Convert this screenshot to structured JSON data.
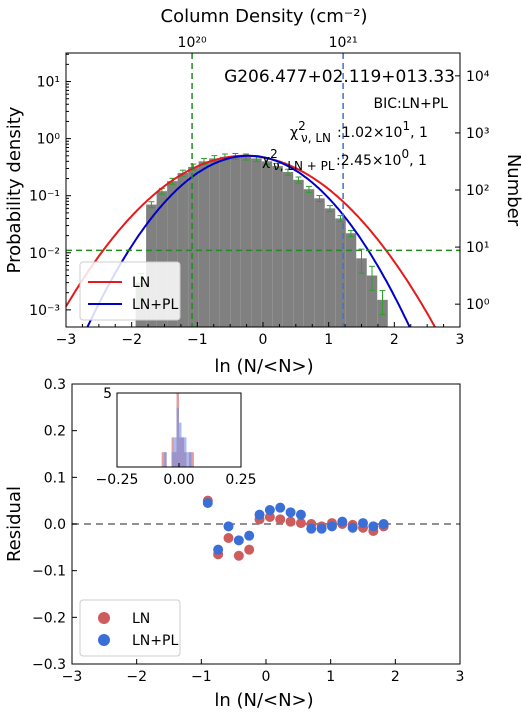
{
  "chart_data": [
    {
      "type": "histogram+line",
      "title": "G206.477+02.119+013.33",
      "top_axis": {
        "label": "Column Density (cm⁻²)",
        "ticks": [
          "10²⁰",
          "10²¹"
        ],
        "tick_lnx": [
          -1.08,
          1.22
        ]
      },
      "xlabel": "ln (N/<N>)",
      "ylabel": "Probability density",
      "ylabel_right": "Number",
      "xlim": [
        -3,
        3
      ],
      "ylim_log10": [
        -3.3,
        1.5
      ],
      "yticks_left": [
        "10⁻³",
        "10⁻²",
        "10⁻¹",
        "10⁰",
        "10¹"
      ],
      "yticks_right": [
        "10⁰",
        "10¹",
        "10²",
        "10³",
        "10⁴"
      ],
      "annotations": {
        "bic": "BIC:LN+PL",
        "chi_ln": "χ²ν,LN:1.02×10¹, 1",
        "chi_ln_label": "χ",
        "chi_ln_sup": "2",
        "chi_ln_sub": "ν, LN",
        "chi_ln_val": ":1.02×10",
        "chi_ln_exp": "1",
        "chi_ln_tail": ", 1",
        "chi_pl_label": "χ",
        "chi_pl_sup": "2",
        "chi_pl_sub": "ν, LN + PL",
        "chi_pl_val": ":2.45×10",
        "chi_pl_exp": "0",
        "chi_pl_tail": ", 1"
      },
      "histogram": {
        "bin_width": 0.16,
        "bin_left_edges": [
          -1.94,
          -1.78,
          -1.62,
          -1.46,
          -1.3,
          -1.14,
          -0.98,
          -0.82,
          -0.66,
          -0.5,
          -0.34,
          -0.18,
          -0.02,
          0.14,
          0.3,
          0.46,
          0.62,
          0.78,
          0.94,
          1.1,
          1.26,
          1.42,
          1.58,
          1.74
        ],
        "density": [
          0.003,
          0.07,
          0.12,
          0.18,
          0.25,
          0.32,
          0.4,
          0.45,
          0.48,
          0.49,
          0.48,
          0.45,
          0.4,
          0.33,
          0.26,
          0.19,
          0.13,
          0.09,
          0.06,
          0.04,
          0.022,
          0.008,
          0.004,
          0.0015
        ],
        "color": "#808080"
      },
      "error_bars_color": "#2ca02c",
      "reference_lines": {
        "horizontal_pdf": 0.011,
        "vertical_green_lnx": -1.08,
        "vertical_blue_lnx": 1.22
      },
      "series": [
        {
          "name": "LN",
          "color": "#e41a1c",
          "model": "lognormal",
          "mu": -0.28,
          "sigma": 0.78,
          "amp": 0.5
        },
        {
          "name": "LN+PL",
          "color": "#0000cc",
          "model": "lognormal",
          "mu": -0.22,
          "sigma": 0.66,
          "amp": 0.5
        }
      ],
      "legend": {
        "position": "bottom-left",
        "entries": [
          "LN",
          "LN+PL"
        ]
      }
    },
    {
      "type": "scatter",
      "xlabel": "ln (N/<N>)",
      "ylabel": "Residual",
      "xlim": [
        -3,
        3
      ],
      "ylim": [
        -0.3,
        0.3
      ],
      "xticks": [
        "−3",
        "−2",
        "−1",
        "0",
        "1",
        "2",
        "3"
      ],
      "yticks": [
        "−0.3",
        "−0.2",
        "−0.1",
        "0.0",
        "0.1",
        "0.2",
        "0.3"
      ],
      "series": [
        {
          "name": "LN",
          "color": "#cd5c5c",
          "x": [
            -0.9,
            -0.74,
            -0.58,
            -0.42,
            -0.26,
            -0.1,
            0.06,
            0.22,
            0.38,
            0.54,
            0.7,
            0.86,
            1.02,
            1.18,
            1.34,
            1.5,
            1.66,
            1.82
          ],
          "y": [
            0.05,
            -0.065,
            -0.03,
            -0.068,
            -0.055,
            0.01,
            0.015,
            0.01,
            0.005,
            0.002,
            0.0,
            -0.005,
            0.002,
            0.0,
            -0.002,
            -0.008,
            -0.015,
            -0.005
          ]
        },
        {
          "name": "LN+PL",
          "color": "#3a6fd8",
          "x": [
            -0.9,
            -0.74,
            -0.58,
            -0.42,
            -0.26,
            -0.1,
            0.06,
            0.22,
            0.38,
            0.54,
            0.7,
            0.86,
            1.02,
            1.18,
            1.34,
            1.5,
            1.66,
            1.82
          ],
          "y": [
            0.045,
            -0.055,
            -0.005,
            -0.035,
            -0.025,
            0.02,
            0.03,
            0.035,
            0.025,
            0.02,
            -0.01,
            -0.01,
            -0.005,
            0.005,
            -0.008,
            0.002,
            -0.005,
            0.0
          ]
        }
      ],
      "zero_line": 0,
      "inset": {
        "type": "histogram",
        "xlim": [
          -0.25,
          0.25
        ],
        "ylim": [
          0,
          5
        ],
        "xticks": [
          "−0.25",
          "0.00",
          "0.25"
        ],
        "yticks": [
          "5"
        ],
        "series": [
          {
            "name": "LN",
            "color": "#cd5c5c",
            "bins": [
              -0.07,
              -0.06,
              -0.05,
              -0.04,
              -0.03,
              -0.02,
              -0.01,
              0.0,
              0.01,
              0.02,
              0.03,
              0.04,
              0.05
            ],
            "counts": [
              1,
              1,
              0,
              0,
              2,
              1,
              5,
              2,
              2,
              1,
              0,
              1,
              1
            ]
          },
          {
            "name": "LN+PL",
            "color": "#6f8de8",
            "bins": [
              -0.06,
              -0.05,
              -0.04,
              -0.03,
              -0.02,
              -0.01,
              0.0,
              0.01,
              0.02,
              0.03,
              0.04
            ],
            "counts": [
              1,
              0,
              0,
              1,
              2,
              4,
              3,
              2,
              2,
              1,
              1
            ]
          }
        ]
      },
      "legend": {
        "position": "bottom-left",
        "entries": [
          "LN",
          "LN+PL"
        ]
      }
    }
  ]
}
